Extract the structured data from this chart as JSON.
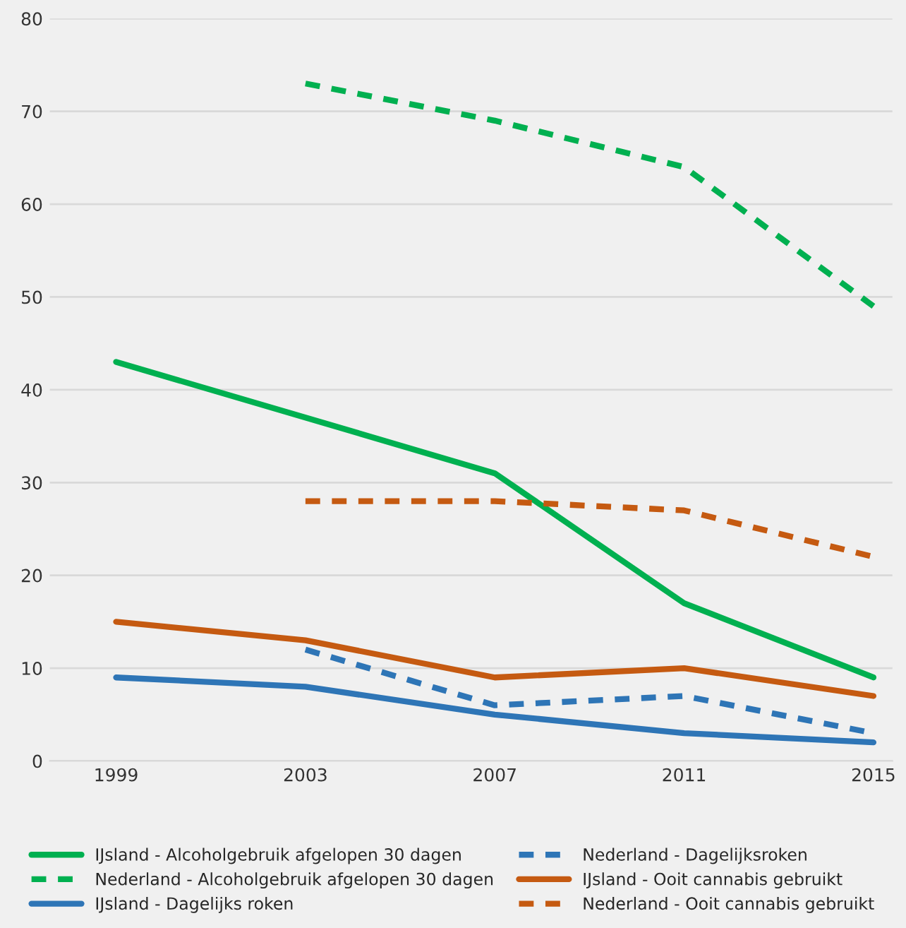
{
  "chart_data": {
    "type": "line",
    "categories": [
      "1999",
      "2003",
      "2007",
      "2011",
      "2015"
    ],
    "series": [
      {
        "name": "IJsland - Alcoholgebruik afgelopen 30 dagen",
        "color": "#00b050",
        "line_style": "solid",
        "values": [
          43,
          37,
          31,
          17,
          9
        ]
      },
      {
        "name": "Nederland - Alcoholgebruik afgelopen 30 dagen",
        "color": "#00b050",
        "line_style": "dashed",
        "values": [
          null,
          73,
          69,
          64,
          49
        ]
      },
      {
        "name": "IJsland - Dagelijks roken",
        "color": "#2e75b6",
        "line_style": "solid",
        "values": [
          9,
          8,
          5,
          3,
          2
        ]
      },
      {
        "name": "Nederland - Dagelijksroken",
        "color": "#2e75b6",
        "line_style": "dashed",
        "values": [
          null,
          12,
          6,
          7,
          3
        ]
      },
      {
        "name": "IJsland - Ooit cannabis gebruikt",
        "color": "#c55a11",
        "line_style": "solid",
        "values": [
          15,
          13,
          9,
          10,
          7
        ]
      },
      {
        "name": "Nederland - Ooit cannabis gebruikt",
        "color": "#c55a11",
        "line_style": "dashed",
        "values": [
          null,
          28,
          28,
          27,
          22
        ]
      }
    ],
    "ylim": [
      0,
      80
    ],
    "yticks": [
      0,
      10,
      20,
      30,
      40,
      50,
      60,
      70,
      80
    ],
    "grid": "y",
    "legend": "bottom",
    "marker": "none"
  }
}
